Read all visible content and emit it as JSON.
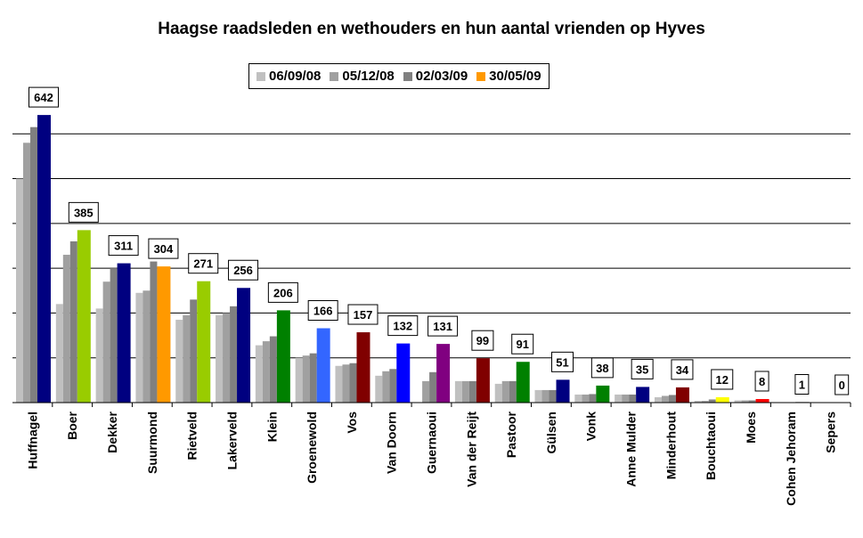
{
  "chart_data": {
    "type": "bar",
    "title": "Haagse raadsleden en wethouders en hun aantal vrienden op Hyves",
    "xlabel": "",
    "ylabel": "",
    "ylim": [
      0,
      680
    ],
    "grid": true,
    "legend_position": "top-center",
    "legend": [
      {
        "name": "06/09/08",
        "color": "#c0c0c0"
      },
      {
        "name": "05/12/08",
        "color": "#a0a0a0"
      },
      {
        "name": "02/03/09",
        "color": "#808080"
      },
      {
        "name": "30/05/09",
        "color": "#ff9900"
      }
    ],
    "categories": [
      "Huffnagel",
      "Boer",
      "Dekker",
      "Suurmond",
      "Rietveld",
      "Lakerveld",
      "Klein",
      "Groenewold",
      "Vos",
      "Van Doorn",
      "Guernaoui",
      "Van der Reijt",
      "Pastoor",
      "Gülsen",
      "Vonk",
      "Anne Mulder",
      "Minderhout",
      "Bouchtaoui",
      "Moes",
      "Cohen Jehoram",
      "Sepers"
    ],
    "series": [
      {
        "name": "06/09/08",
        "values": [
          500,
          220,
          210,
          245,
          185,
          195,
          128,
          100,
          82,
          60,
          0,
          48,
          42,
          28,
          18,
          18,
          12,
          4,
          5,
          0,
          0
        ]
      },
      {
        "name": "05/12/08",
        "values": [
          580,
          330,
          270,
          250,
          195,
          200,
          137,
          105,
          85,
          70,
          48,
          48,
          48,
          28,
          18,
          18,
          15,
          4,
          5,
          0,
          0
        ]
      },
      {
        "name": "02/03/09",
        "values": [
          615,
          360,
          300,
          315,
          230,
          215,
          148,
          110,
          88,
          75,
          68,
          48,
          48,
          28,
          19,
          18,
          17,
          7,
          5,
          0,
          0
        ]
      },
      {
        "name": "30/05/09",
        "values": [
          642,
          385,
          311,
          304,
          271,
          256,
          206,
          166,
          157,
          132,
          131,
          99,
          91,
          51,
          38,
          35,
          34,
          12,
          8,
          1,
          0
        ]
      }
    ],
    "latest_colors": [
      "#000080",
      "#99cc00",
      "#000080",
      "#ff9900",
      "#99cc00",
      "#000080",
      "#008000",
      "#3366ff",
      "#800000",
      "#0000ff",
      "#800080",
      "#800000",
      "#008000",
      "#000080",
      "#008000",
      "#000080",
      "#800000",
      "#ffff00",
      "#ff0000",
      "#ffffff",
      "#ffffff"
    ],
    "data_labels": [
      "642",
      "385",
      "311",
      "304",
      "271",
      "256",
      "206",
      "166",
      "157",
      "132",
      "131",
      "99",
      "91",
      "51",
      "38",
      "35",
      "34",
      "12",
      "8",
      "1",
      "0"
    ]
  }
}
